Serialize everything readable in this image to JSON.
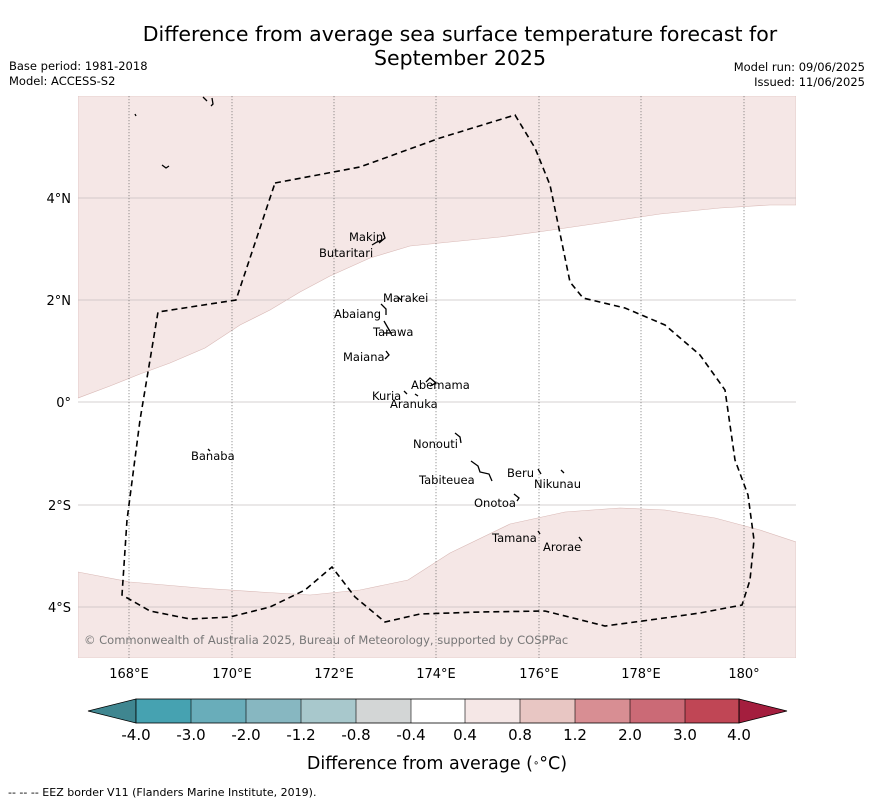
{
  "title": "Difference from average sea surface temperature forecast for September 2025",
  "title_lines": [
    "Difference from average sea surface temperature forecast for",
    "September 2025"
  ],
  "base_period": "Base period: 1981-2018",
  "model": "Model: ACCESS-S2",
  "model_run": "Model run: 09/06/2025",
  "issued": "Issued: 11/06/2025",
  "copyright": "© Commonwealth of Australia 2025, Bureau of Meteorology, supported by COSPPac",
  "footer": "--  --  -- EEZ border V11 (Flanders Marine Institute, 2019).",
  "map": {
    "lon_range": [
      167,
      181
    ],
    "lat_range": [
      -5,
      6
    ],
    "lon_ticks": [
      168,
      170,
      172,
      174,
      176,
      178,
      180
    ],
    "lon_labels": [
      "168°E",
      "170°E",
      "172°E",
      "174°E",
      "176°E",
      "178°E",
      "180°"
    ],
    "lat_ticks": [
      4,
      2,
      0,
      -2,
      -4
    ],
    "lat_labels": [
      "4°N",
      "2°N",
      "0°",
      "2°S",
      "4°S"
    ],
    "places": [
      {
        "name": "Makin",
        "lon": 172.97,
        "lat": 3.27
      },
      {
        "name": "Butaritari",
        "lon": 172.79,
        "lat": 3.07
      },
      {
        "name": "Marakei",
        "lon": 173.26,
        "lat": 2.01
      },
      {
        "name": "Abaiang",
        "lon": 172.95,
        "lat": 1.83
      },
      {
        "name": "Tarawa",
        "lon": 173.0,
        "lat": 1.42
      },
      {
        "name": "Maiana",
        "lon": 173.03,
        "lat": 0.94
      },
      {
        "name": "Abemama",
        "lon": 173.86,
        "lat": 0.44
      },
      {
        "name": "Kuria",
        "lon": 173.4,
        "lat": 0.23
      },
      {
        "name": "Aranuka",
        "lon": 173.6,
        "lat": 0.18
      },
      {
        "name": "Nonouti",
        "lon": 174.45,
        "lat": -0.68
      },
      {
        "name": "Banaba",
        "lon": 169.53,
        "lat": -0.86
      },
      {
        "name": "Tabiteuea",
        "lon": 174.8,
        "lat": -1.35
      },
      {
        "name": "Beru",
        "lon": 175.98,
        "lat": -1.33
      },
      {
        "name": "Nikunau",
        "lon": 176.45,
        "lat": -1.36
      },
      {
        "name": "Onotoa",
        "lon": 175.56,
        "lat": -1.82
      },
      {
        "name": "Tamana",
        "lon": 176.0,
        "lat": -2.5
      },
      {
        "name": "Arorae",
        "lon": 176.82,
        "lat": -2.65
      }
    ]
  },
  "colorbar": {
    "label": "Difference from average (°C)",
    "label_text": "Difference from average (",
    "label_unit": "°C)",
    "ticks": [
      "-4.0",
      "-3.0",
      "-2.0",
      "-1.2",
      "-0.8",
      "-0.4",
      "0.4",
      "0.8",
      "1.2",
      "2.0",
      "3.0",
      "4.0"
    ],
    "colors": {
      "under": "#3f8690",
      "bins": [
        "#46a2b1",
        "#69adba",
        "#87b7c1",
        "#a8c8cc",
        "#d3d6d6",
        "#ffffff",
        "#f5e7e6",
        "#e8c6c3",
        "#d88e93",
        "#cb6a76",
        "#c04655"
      ],
      "over": "#a41e3e"
    }
  }
}
